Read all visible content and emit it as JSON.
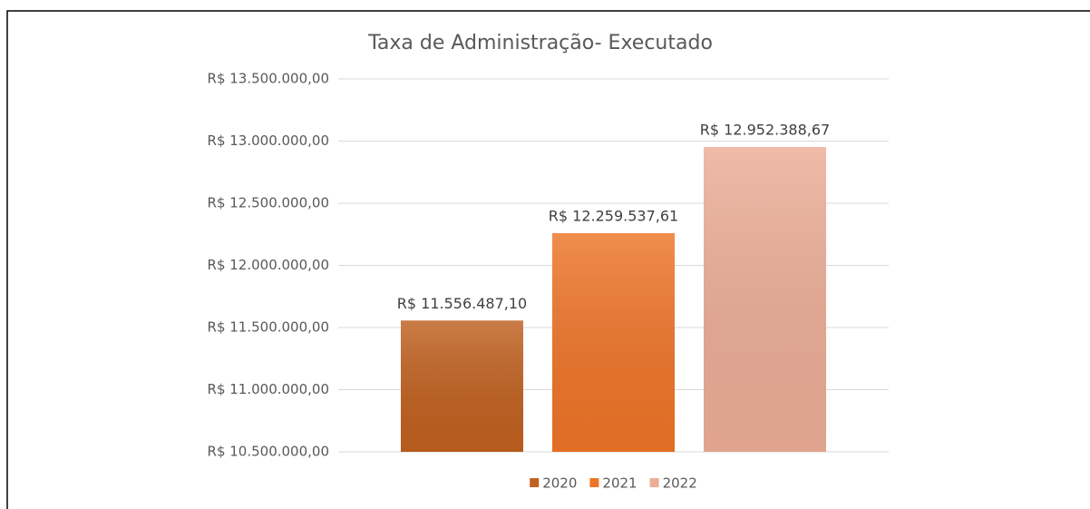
{
  "chart_data": {
    "type": "bar",
    "title": "Taxa de Administração- Executado",
    "categories": [
      null
    ],
    "series": [
      {
        "name": "2020",
        "color": "#c0601f",
        "values": [
          11556487.1
        ],
        "value_labels": [
          "R$ 11.556.487,10"
        ]
      },
      {
        "name": "2021",
        "color": "#ee7428",
        "values": [
          12259537.61
        ],
        "value_labels": [
          "R$ 12.259.537,61"
        ]
      },
      {
        "name": "2022",
        "color": "#ecad96",
        "values": [
          12952388.67
        ],
        "value_labels": [
          "R$ 12.952.388,67"
        ]
      }
    ],
    "ylim": [
      10500000,
      13500000
    ],
    "yticks": [
      {
        "value": 10500000,
        "label": "R$ 10.500.000,00"
      },
      {
        "value": 11000000,
        "label": "R$ 11.000.000,00"
      },
      {
        "value": 11500000,
        "label": "R$ 11.500.000,00"
      },
      {
        "value": 12000000,
        "label": "R$ 12.000.000,00"
      },
      {
        "value": 12500000,
        "label": "R$ 12.500.000,00"
      },
      {
        "value": 13000000,
        "label": "R$ 13.000.000,00"
      },
      {
        "value": 13500000,
        "label": "R$ 13.500.000,00"
      }
    ],
    "grid": true,
    "legend": "bottom"
  }
}
